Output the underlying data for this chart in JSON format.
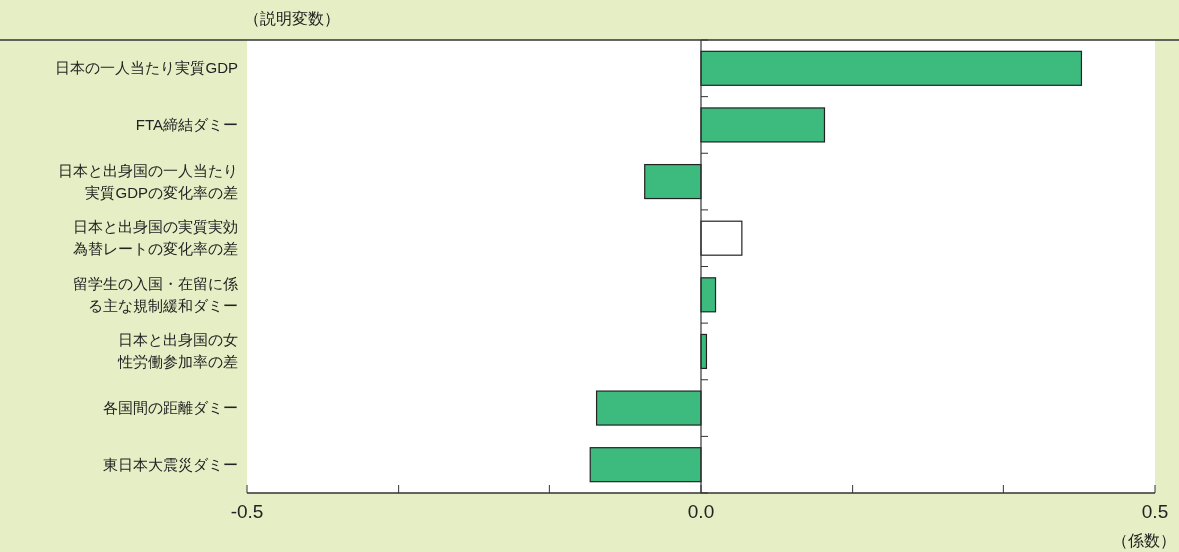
{
  "chart_data": {
    "type": "bar",
    "orientation": "horizontal",
    "ylabel": "（説明変数）",
    "xlabel": "（係数）",
    "categories": [
      "日本の一人当たり実質GDP",
      "FTA締結ダミー",
      "日本と出身国の一人当たり実質GDPの変化率の差",
      "日本と出身国の実質実効為替レートの変化率の差",
      "留学生の入国・在留に係る主な規制緩和ダミー",
      "日本と出身国の女性労働参加率の差",
      "各国間の距離ダミー",
      "東日本大震災ダミー"
    ],
    "values": [
      0.419,
      0.136,
      -0.062,
      0.045,
      0.016,
      0.006,
      -0.115,
      -0.122
    ],
    "colors": [
      "#3dbb7f",
      "#3dbb7f",
      "#3dbb7f",
      "#ffffff",
      "#3dbb7f",
      "#3dbb7f",
      "#3dbb7f",
      "#3dbb7f"
    ],
    "xlim": [
      -0.5,
      0.5
    ],
    "xticks": [
      -0.5,
      {
        "value": -0.333,
        "label": null
      },
      {
        "value": -0.167,
        "label": null
      },
      {
        "value": 0,
        "label": "0.0"
      },
      {
        "value": 0.167,
        "label": null
      },
      {
        "value": 0.333,
        "label": null
      },
      0.5
    ]
  }
}
